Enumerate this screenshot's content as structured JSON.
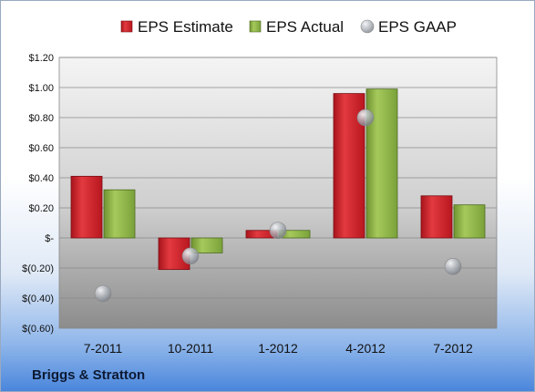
{
  "company": "Briggs & Stratton",
  "colors": {
    "estimate": "#d0202a",
    "actual": "#8db342",
    "gaap": "#a9adb3",
    "plot_top": "#f2f2f2",
    "plot_bottom": "#9a9a9a"
  },
  "chart_data": {
    "type": "bar",
    "categories": [
      "7-2011",
      "10-2011",
      "1-2012",
      "4-2012",
      "7-2012"
    ],
    "series": [
      {
        "name": "EPS Estimate",
        "style": "bar",
        "values": [
          0.41,
          -0.21,
          0.05,
          0.96,
          0.28
        ]
      },
      {
        "name": "EPS Actual",
        "style": "bar",
        "values": [
          0.32,
          -0.1,
          0.05,
          0.99,
          0.22
        ]
      },
      {
        "name": "EPS GAAP",
        "style": "marker",
        "values": [
          -0.37,
          -0.12,
          0.05,
          0.8,
          -0.19
        ]
      }
    ],
    "ylim": [
      -0.6,
      1.2
    ],
    "yticks": [
      1.2,
      1.0,
      0.8,
      0.6,
      0.4,
      0.2,
      0,
      -0.2,
      -0.4,
      -0.6
    ],
    "ytick_labels": [
      "$1.20",
      "$1.00",
      "$0.80",
      "$0.60",
      "$0.40",
      "$0.20",
      "$-",
      "$(0.20)",
      "$(0.40)",
      "$(0.60)"
    ],
    "grid": true,
    "legend": "top"
  }
}
